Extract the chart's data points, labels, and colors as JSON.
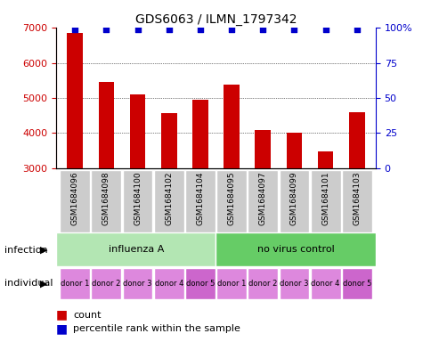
{
  "title": "GDS6063 / ILMN_1797342",
  "samples": [
    "GSM1684096",
    "GSM1684098",
    "GSM1684100",
    "GSM1684102",
    "GSM1684104",
    "GSM1684095",
    "GSM1684097",
    "GSM1684099",
    "GSM1684101",
    "GSM1684103"
  ],
  "counts": [
    6850,
    5450,
    5100,
    4580,
    4950,
    5380,
    4080,
    4020,
    3480,
    4600
  ],
  "percentiles": [
    99,
    99,
    99,
    99,
    99,
    99,
    99,
    99,
    99,
    99
  ],
  "ylim_left": [
    3000,
    7000
  ],
  "ylim_right": [
    0,
    100
  ],
  "yticks_left": [
    3000,
    4000,
    5000,
    6000,
    7000
  ],
  "yticks_right": [
    0,
    25,
    50,
    75,
    100
  ],
  "infection_labels": [
    "influenza A",
    "no virus control"
  ],
  "infection_colors": [
    "#b3e6b3",
    "#66cc66"
  ],
  "individual_labels": [
    "donor 1",
    "donor 2",
    "donor 3",
    "donor 4",
    "donor 5",
    "donor 1",
    "donor 2",
    "donor 3",
    "donor 4",
    "donor 5"
  ],
  "individual_color": "#dd88dd",
  "individual_color_5": "#cc66cc",
  "bar_color": "#cc0000",
  "dot_color": "#0000cc",
  "label_color_left": "#cc0000",
  "label_color_right": "#0000cc",
  "grid_color": "#000000",
  "bg_color": "#ffffff",
  "sample_bg": "#cccccc"
}
